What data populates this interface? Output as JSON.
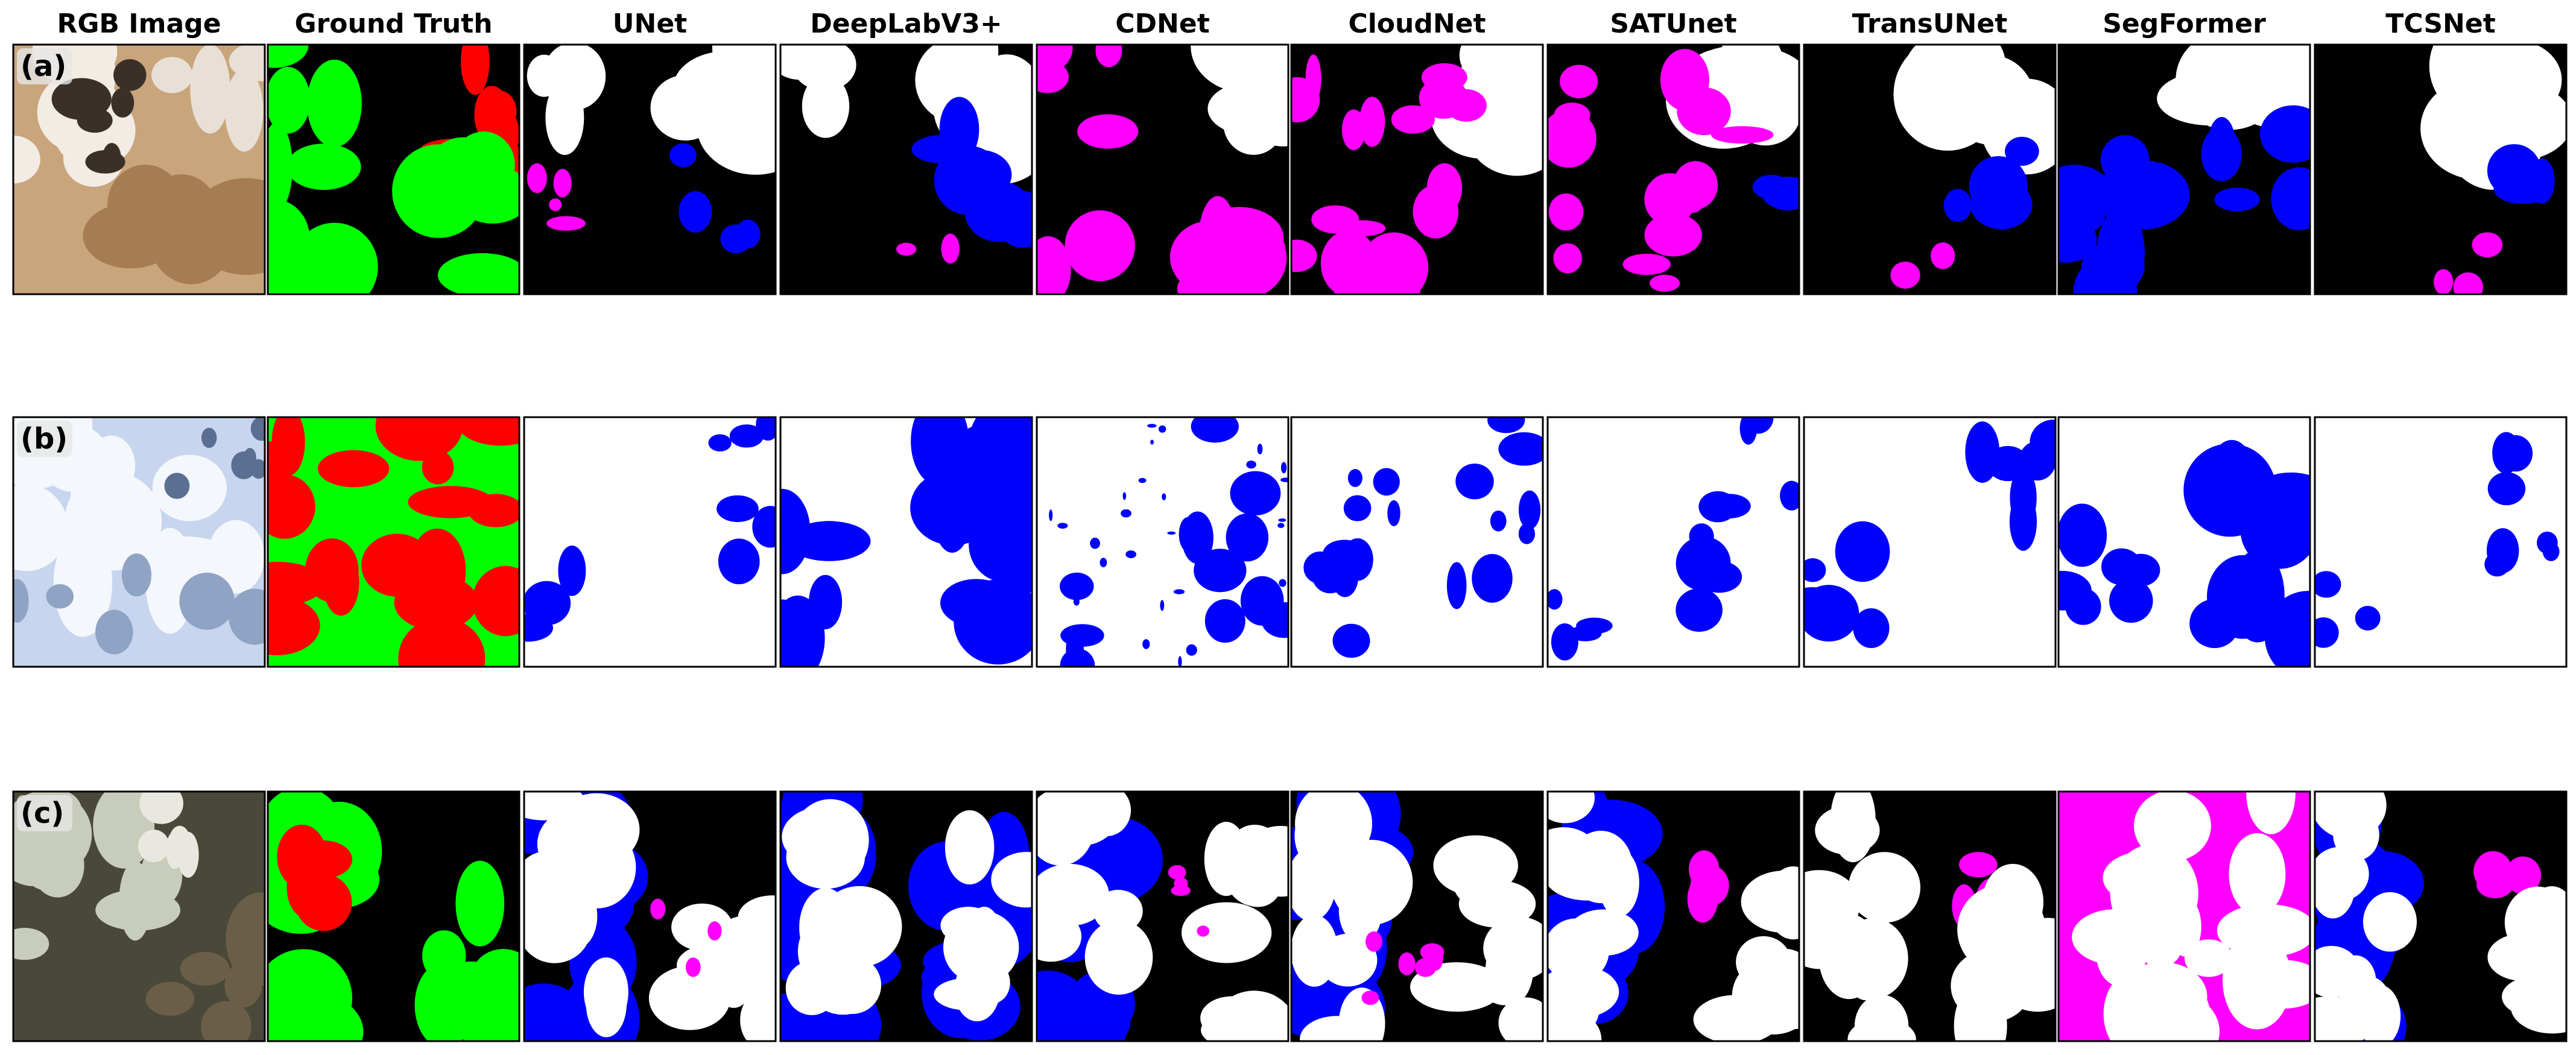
{
  "columns": [
    "RGB Image",
    "Ground Truth",
    "UNet",
    "DeepLabV3+",
    "CDNet",
    "CloudNet",
    "SATUnet",
    "TransUNet",
    "SegFormer",
    "TCSNet"
  ],
  "rows": [
    {
      "label": "(a)"
    },
    {
      "label": "(b)"
    },
    {
      "label": "(c)"
    }
  ]
}
